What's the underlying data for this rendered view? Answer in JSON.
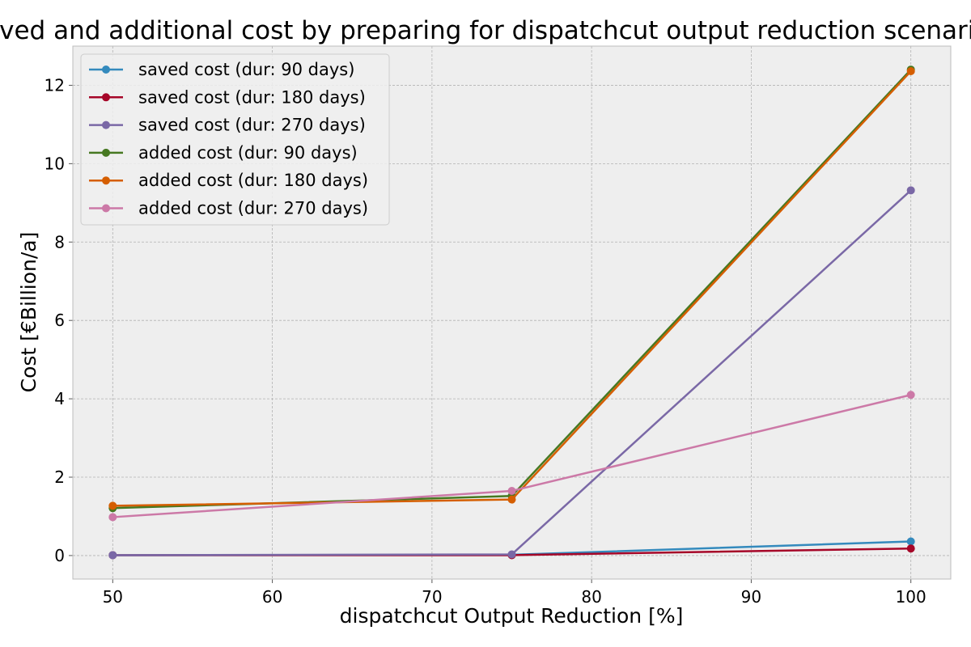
{
  "chart_data": {
    "type": "line",
    "title": "Saved and additional cost by preparing for dispatchcut output reduction scenarios",
    "xlabel": "dispatchcut Output Reduction [%]",
    "ylabel": "Cost [€Billion/a]",
    "x": [
      50,
      75,
      100
    ],
    "xlim": [
      47.5,
      102.5
    ],
    "ylim": [
      -0.6,
      13.0
    ],
    "xticks": [
      50,
      60,
      70,
      80,
      90,
      100
    ],
    "yticks": [
      0,
      2,
      4,
      6,
      8,
      10,
      12
    ],
    "grid": true,
    "legend_position": "top-left",
    "series": [
      {
        "name": "saved cost (dur: 90 days)",
        "color": "#348ABD",
        "values": [
          0.01,
          0.02,
          0.36
        ]
      },
      {
        "name": "saved cost (dur: 180 days)",
        "color": "#A60628",
        "values": [
          0.01,
          0.01,
          0.18
        ]
      },
      {
        "name": "saved cost (dur: 270 days)",
        "color": "#7A68A6",
        "values": [
          0.01,
          0.03,
          9.32
        ]
      },
      {
        "name": "added cost (dur: 90 days)",
        "color": "#467821",
        "values": [
          1.21,
          1.52,
          12.4
        ]
      },
      {
        "name": "added cost (dur: 180 days)",
        "color": "#D55E00",
        "values": [
          1.27,
          1.43,
          12.36
        ]
      },
      {
        "name": "added cost (dur: 270 days)",
        "color": "#CC79A7",
        "values": [
          0.98,
          1.65,
          4.1
        ]
      }
    ]
  }
}
